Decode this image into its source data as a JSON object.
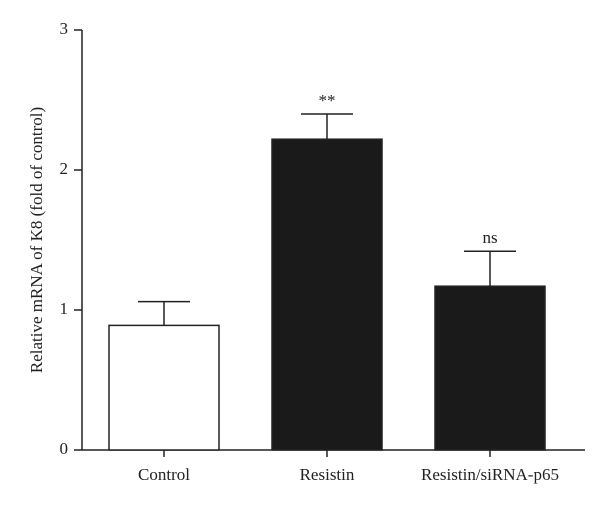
{
  "chart_data": {
    "type": "bar",
    "categories": [
      "Control",
      "Resistin",
      "Resistin/siRNA-p65"
    ],
    "values": [
      0.89,
      2.22,
      1.17
    ],
    "errors": [
      0.17,
      0.18,
      0.25
    ],
    "annotations": [
      "",
      "**",
      "ns"
    ],
    "bar_colors": [
      "#ffffff",
      "#1a1a1a",
      "#1a1a1a"
    ],
    "ylabel": "Relative mRNA of K8 (fold of control)",
    "xlabel": "",
    "title": "",
    "ylim": [
      0,
      3
    ],
    "yticks": [
      0,
      1,
      2,
      3
    ],
    "grid": false,
    "legend": "none"
  }
}
